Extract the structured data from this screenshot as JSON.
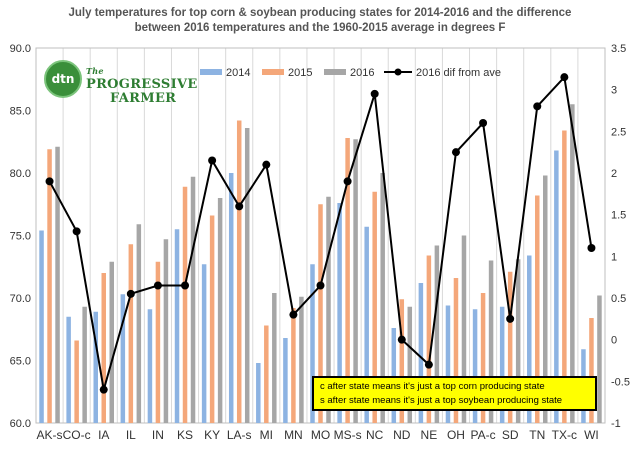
{
  "chart_data": {
    "type": "bar",
    "title_line1": "July temperatures for top corn & soybean producing states for 2014-2016 and the difference",
    "title_line2": "between 2016 temperatures and the 1960-2015 average in degrees F",
    "logo": {
      "badge": "dtn",
      "line1": "PROGRESSIVE",
      "line2": "FARMER",
      "prefix": "The"
    },
    "categories": [
      "AK-s",
      "CO-c",
      "IA",
      "IL",
      "IN",
      "KS",
      "KY",
      "LA-s",
      "MI",
      "MN",
      "MO",
      "MS-s",
      "NC",
      "ND",
      "NE",
      "OH",
      "PA-c",
      "SD",
      "TN",
      "TX-c",
      "WI"
    ],
    "series": [
      {
        "name": "2014",
        "color": "#8db3e2",
        "values": [
          75.4,
          68.5,
          68.9,
          70.3,
          69.1,
          75.5,
          72.7,
          80.0,
          64.8,
          66.8,
          72.7,
          77.6,
          75.7,
          67.6,
          71.2,
          69.4,
          69.1,
          69.3,
          73.4,
          81.8,
          65.9
        ]
      },
      {
        "name": "2015",
        "color": "#f4a77a",
        "values": [
          81.9,
          66.6,
          72.0,
          74.3,
          72.9,
          78.9,
          76.6,
          84.2,
          67.8,
          69.2,
          77.5,
          82.8,
          78.5,
          69.9,
          73.4,
          71.6,
          70.4,
          72.1,
          78.2,
          83.4,
          68.4
        ]
      },
      {
        "name": "2016",
        "color": "#a6a6a6",
        "values": [
          82.1,
          69.3,
          72.9,
          75.9,
          74.7,
          79.7,
          78.0,
          83.6,
          70.4,
          70.1,
          78.1,
          82.7,
          80.0,
          69.3,
          74.2,
          75.0,
          73.0,
          73.1,
          79.8,
          85.5,
          70.2
        ]
      }
    ],
    "line_series": {
      "name": "2016 dif from ave",
      "color": "#000000",
      "values": [
        1.9,
        1.3,
        -0.6,
        0.55,
        0.65,
        0.65,
        2.15,
        1.6,
        2.1,
        0.3,
        0.65,
        1.9,
        2.95,
        0.0,
        -0.3,
        2.25,
        2.6,
        0.25,
        2.8,
        3.15,
        1.1
      ]
    },
    "y_left": {
      "min": 60.0,
      "max": 90.0,
      "step": 5.0,
      "ticks": [
        "60.0",
        "65.0",
        "70.0",
        "75.0",
        "80.0",
        "85.0",
        "90.0"
      ]
    },
    "y_right": {
      "min": -1,
      "max": 3.5,
      "step": 0.5,
      "ticks": [
        "-1",
        "-0.5",
        "0",
        "0.5",
        "1",
        "1.5",
        "2",
        "2.5",
        "3",
        "3.5"
      ]
    },
    "legend_position": "top-right",
    "grid": "vertical gridlines between categories",
    "annotation": {
      "line1": "c after state means it's just a top corn producing state",
      "line2": "s after state means it's just a top soybean producing state"
    }
  }
}
